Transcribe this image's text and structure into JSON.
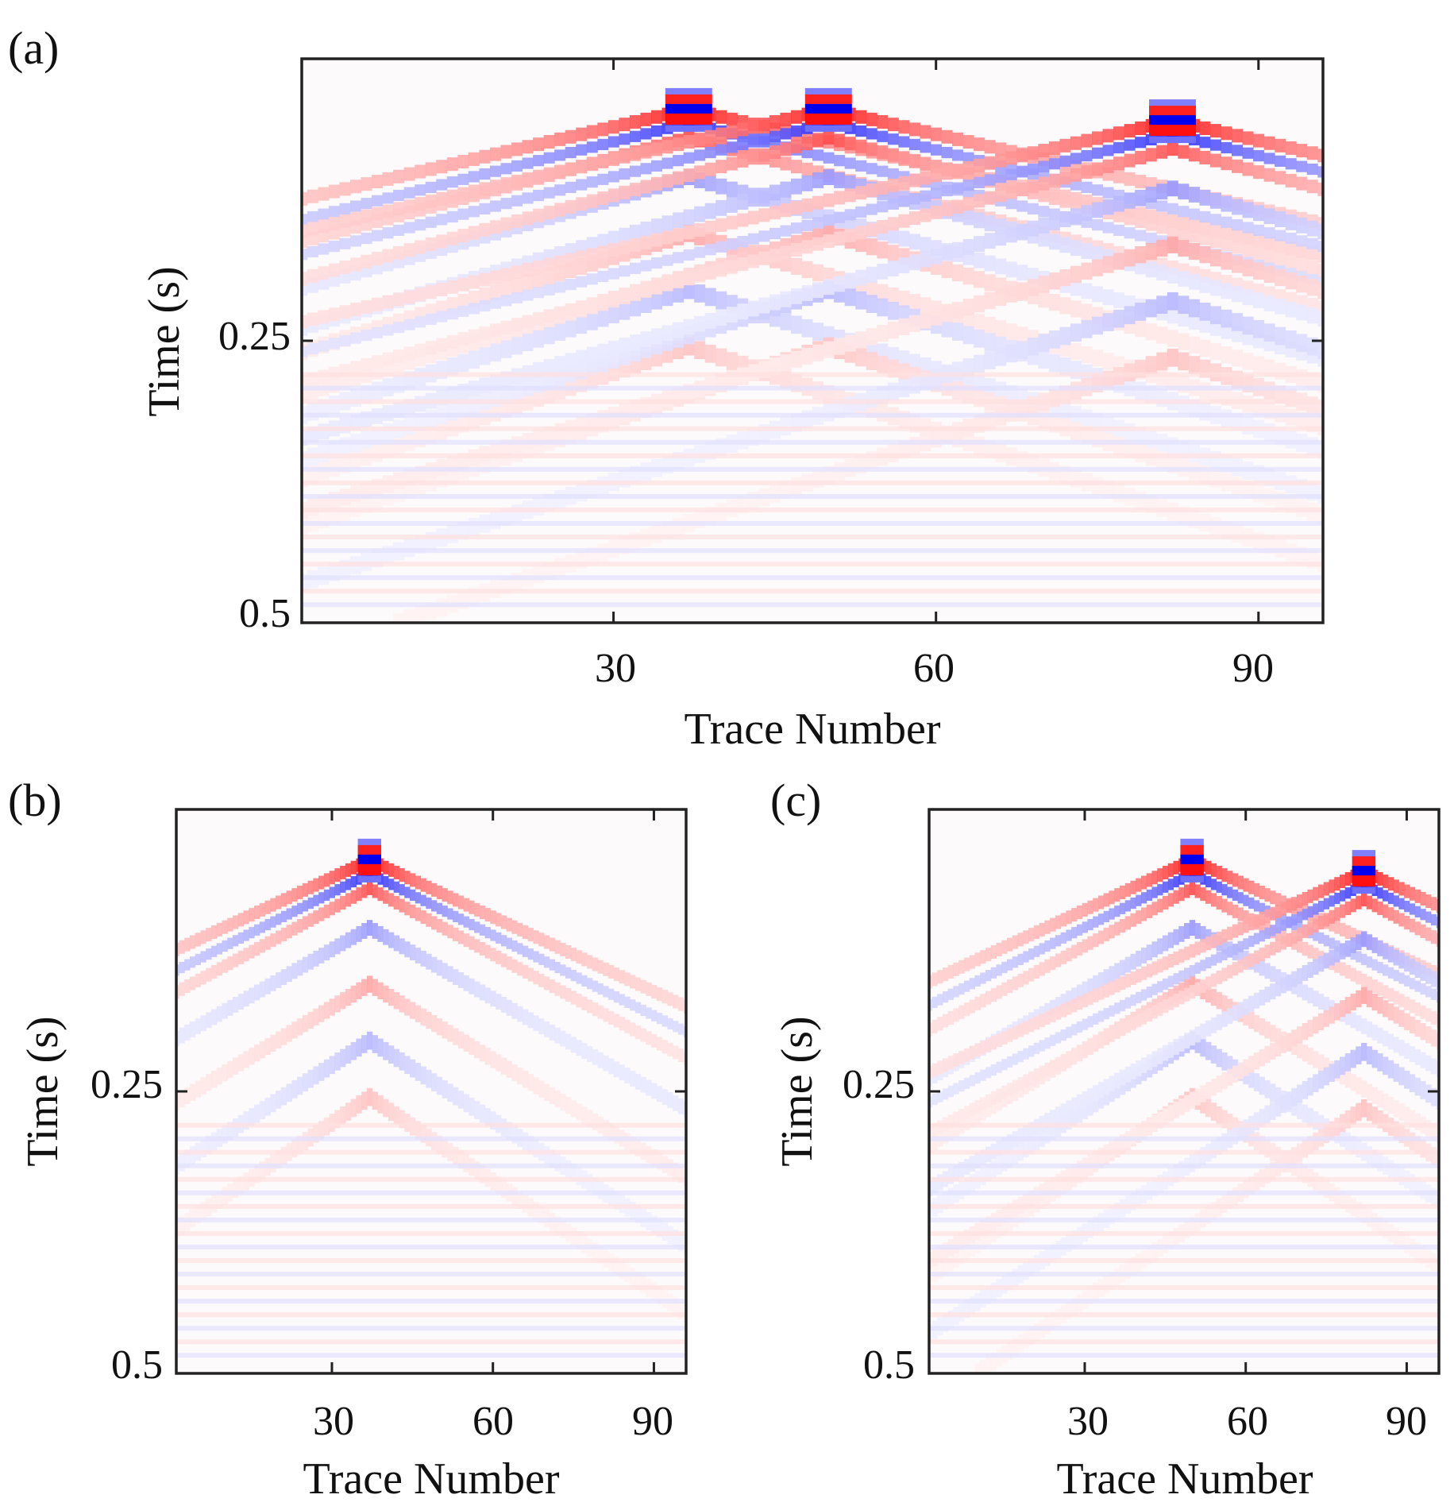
{
  "chart_data": [
    {
      "type": "heatmap",
      "panel_label": "(a)",
      "xlabel": "Trace Number",
      "ylabel": "Time (s)",
      "x_ticks": [
        "30",
        "60",
        "90"
      ],
      "y_ticks": [
        "0.25",
        "0.5"
      ],
      "x_tick_values": [
        30,
        60,
        90
      ],
      "y_tick_values": [
        0.25,
        0.5
      ],
      "xlim": [
        1,
        96
      ],
      "ylim": [
        0.5,
        0.0
      ],
      "colormap": [
        "#0000ff",
        "#ffffff",
        "#ff0000"
      ],
      "sources": [
        {
          "trace": 37,
          "time": 0.045
        },
        {
          "trace": 50,
          "time": 0.045
        },
        {
          "trace": 82,
          "time": 0.055
        }
      ]
    },
    {
      "type": "heatmap",
      "panel_label": "(b)",
      "xlabel": "Trace Number",
      "ylabel": "Time (s)",
      "x_ticks": [
        "30",
        "60",
        "90"
      ],
      "y_ticks": [
        "0.25",
        "0.5"
      ],
      "x_tick_values": [
        30,
        60,
        90
      ],
      "y_tick_values": [
        0.25,
        0.5
      ],
      "xlim": [
        1,
        96
      ],
      "ylim": [
        0.5,
        0.0
      ],
      "colormap": [
        "#0000ff",
        "#ffffff",
        "#ff0000"
      ],
      "sources": [
        {
          "trace": 37,
          "time": 0.045
        }
      ]
    },
    {
      "type": "heatmap",
      "panel_label": "(c)",
      "xlabel": "Trace Number",
      "ylabel": "Time (s)",
      "x_ticks": [
        "30",
        "60",
        "90"
      ],
      "y_ticks": [
        "0.25",
        "0.5"
      ],
      "x_tick_values": [
        30,
        60,
        90
      ],
      "y_tick_values": [
        0.25,
        0.5
      ],
      "xlim": [
        1,
        96
      ],
      "ylim": [
        0.5,
        0.0
      ],
      "colormap": [
        "#0000ff",
        "#ffffff",
        "#ff0000"
      ],
      "sources": [
        {
          "trace": 50,
          "time": 0.045
        },
        {
          "trace": 82,
          "time": 0.055
        }
      ]
    }
  ]
}
